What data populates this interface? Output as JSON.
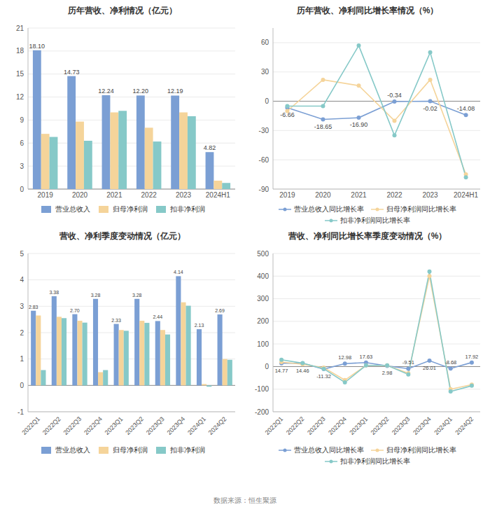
{
  "chart_data": [
    {
      "type": "bar",
      "title": "历年营收、净利情况（亿元）",
      "categories": [
        "2019",
        "2020",
        "2021",
        "2022",
        "2023",
        "2024H1"
      ],
      "series": [
        {
          "name": "营业总收入",
          "color": "#7b9fd4",
          "values": [
            18.1,
            14.73,
            12.24,
            12.2,
            12.19,
            4.82
          ],
          "value_labels": [
            "18.10",
            "14.73",
            "12.24",
            "12.20",
            "12.19",
            "4.82"
          ],
          "data_labels": true
        },
        {
          "name": "归母净利润",
          "color": "#f5d49a",
          "values": [
            7.2,
            8.8,
            10.0,
            8.0,
            10.0,
            1.1
          ]
        },
        {
          "name": "扣非净利润",
          "color": "#86c9c8",
          "values": [
            6.8,
            6.3,
            10.2,
            6.2,
            9.5,
            0.8
          ]
        }
      ],
      "ylim": [
        0,
        21
      ],
      "yticks": [
        0,
        3,
        6,
        9,
        12,
        15,
        18,
        21
      ],
      "grid": true,
      "legend": "bottom"
    },
    {
      "type": "line",
      "title": "历年营收、净利同比增长率情况（%）",
      "categories": [
        "2019",
        "2020",
        "2021",
        "2022",
        "2023",
        "2024H1"
      ],
      "series": [
        {
          "name": "营业总收入同比增长率",
          "color": "#7b9fd4",
          "values": [
            -6.66,
            -18.65,
            -16.9,
            -0.34,
            -0.02,
            -14.08
          ],
          "value_labels": [
            "-6.66",
            "-18.65",
            "-16.90",
            "-0.34",
            "-0.02",
            "-14.08"
          ],
          "data_labels": true
        },
        {
          "name": "归母净利润同比增长率",
          "color": "#f5d49a",
          "values": [
            -10,
            22,
            16,
            -20,
            22,
            -75
          ]
        },
        {
          "name": "扣非净利润同比增长率",
          "color": "#86c9c8",
          "values": [
            -5,
            -5,
            57,
            -35,
            50,
            -78
          ]
        }
      ],
      "ylim": [
        -90,
        75
      ],
      "yticks": [
        -90,
        -60,
        -30,
        0,
        30,
        60
      ],
      "grid": true,
      "legend": "bottom",
      "marker": "circle"
    },
    {
      "type": "bar",
      "title": "营收、净利季度变动情况（亿元）",
      "categories": [
        "2022Q1",
        "2022Q2",
        "2022Q3",
        "2022Q4",
        "2023Q1",
        "2023Q2",
        "2023Q3",
        "2023Q4",
        "2024Q1",
        "2024Q2"
      ],
      "series": [
        {
          "name": "营业总收入",
          "color": "#7b9fd4",
          "values": [
            2.83,
            3.38,
            2.7,
            3.28,
            2.33,
            3.28,
            2.44,
            4.14,
            2.13,
            2.69
          ],
          "value_labels": [
            "2.83",
            "3.38",
            "2.70",
            "3.28",
            "2.33",
            "3.28",
            "2.44",
            "4.14",
            "2.13",
            "2.69"
          ],
          "data_labels": true
        },
        {
          "name": "归母净利润",
          "color": "#f5d49a",
          "values": [
            2.65,
            2.6,
            2.45,
            0.5,
            2.1,
            2.45,
            2.1,
            3.15,
            0.05,
            1.0
          ]
        },
        {
          "name": "扣非净利润",
          "color": "#86c9c8",
          "values": [
            0.58,
            2.55,
            2.38,
            0.58,
            2.07,
            2.37,
            1.93,
            3.02,
            -0.05,
            0.97
          ]
        }
      ],
      "ylim": [
        -1,
        5
      ],
      "yticks": [
        -1,
        0,
        1,
        2,
        3,
        4,
        5
      ],
      "grid": true,
      "legend": "bottom"
    },
    {
      "type": "line",
      "title": "营收、净利同比增长率季度变动情况（%）",
      "categories": [
        "2022Q1",
        "2022Q2",
        "2022Q3",
        "2022Q4",
        "2023Q1",
        "2023Q2",
        "2023Q3",
        "2023Q4",
        "2024Q1",
        "2024Q2"
      ],
      "series": [
        {
          "name": "营业总收入同比增长率",
          "color": "#7b9fd4",
          "values": [
            14.77,
            14.46,
            -11.32,
            12.98,
            17.63,
            2.98,
            -9.51,
            26.01,
            -8.68,
            17.92
          ],
          "data_labels": true
        },
        {
          "name": "归母净利润同比增长率",
          "color": "#f5d49a",
          "values": [
            20,
            10,
            -5,
            -60,
            5,
            5,
            -30,
            400,
            -100,
            -80
          ]
        },
        {
          "name": "扣非净利润同比增长率",
          "color": "#86c9c8",
          "values": [
            30,
            15,
            -10,
            -70,
            5,
            5,
            -35,
            420,
            -110,
            -85
          ]
        }
      ],
      "ylim": [
        -200,
        500
      ],
      "yticks": [
        -200,
        -100,
        0,
        100,
        200,
        300,
        400,
        500
      ],
      "grid": true,
      "legend": "bottom",
      "marker": "circle"
    }
  ],
  "footer": "数据来源：恒生聚源"
}
